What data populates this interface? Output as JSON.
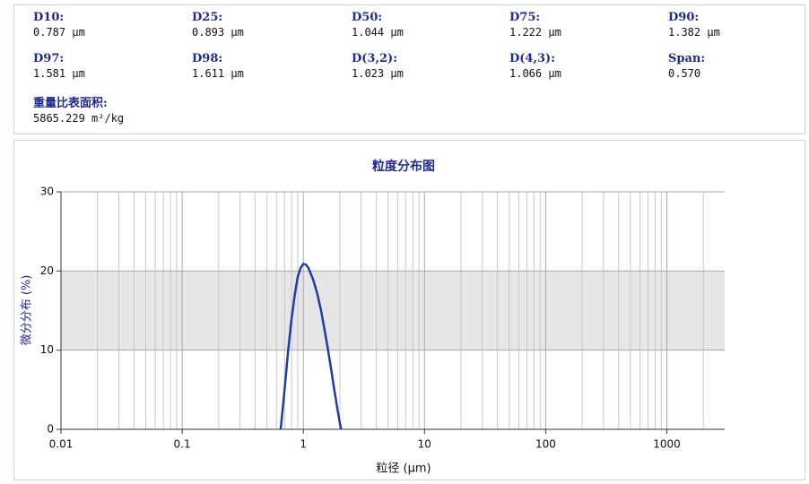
{
  "stats": [
    {
      "label": "D10:",
      "value": "0.787 μm"
    },
    {
      "label": "D25:",
      "value": "0.893 μm"
    },
    {
      "label": "D50:",
      "value": "1.044 μm"
    },
    {
      "label": "D75:",
      "value": "1.222 μm"
    },
    {
      "label": "D90:",
      "value": "1.382 μm"
    },
    {
      "label": "D97:",
      "value": "1.581 μm"
    },
    {
      "label": "D98:",
      "value": "1.611 μm"
    },
    {
      "label": "D(3,2):",
      "value": "1.023 μm"
    },
    {
      "label": "D(4,3):",
      "value": "1.066 μm"
    },
    {
      "label": "Span:",
      "value": "0.570"
    },
    {
      "label": "重量比表面积:",
      "value": "5865.229 m²/kg"
    }
  ],
  "chart_data": {
    "type": "line",
    "title": "粒度分布图",
    "x_label": "粒径 (μm)",
    "y_label": "微分分布 (%)",
    "x_log": true,
    "xlim": [
      0.01,
      3000
    ],
    "xticks": [
      0.01,
      0.1,
      1,
      10,
      100,
      1000
    ],
    "xminorticks": [
      0.02,
      0.03,
      0.04,
      0.05,
      0.06,
      0.07,
      0.08,
      0.09,
      0.2,
      0.3,
      0.4,
      0.5,
      0.6,
      0.7,
      0.8,
      0.9,
      2,
      3,
      4,
      5,
      6,
      7,
      8,
      9,
      20,
      30,
      40,
      50,
      60,
      70,
      80,
      90,
      200,
      300,
      400,
      500,
      600,
      700,
      800,
      900,
      2000
    ],
    "ylim": [
      0,
      30
    ],
    "yticks": [
      0,
      10,
      20,
      30
    ],
    "grid": true,
    "alternate_band_color": "#e6e6e6",
    "series": [
      {
        "name": "微分分布",
        "color": "#1f3d9c",
        "x": [
          0.65,
          0.7,
          0.75,
          0.8,
          0.85,
          0.9,
          0.95,
          1.0,
          1.05,
          1.1,
          1.2,
          1.3,
          1.4,
          1.5,
          1.6,
          1.7,
          1.8,
          1.9,
          2.0,
          2.05
        ],
        "values": [
          0,
          5,
          10,
          14,
          17,
          19.3,
          20.4,
          20.9,
          20.8,
          20.4,
          19,
          17.2,
          15,
          12.5,
          10,
          7.5,
          5,
          2.8,
          0.8,
          0
        ]
      }
    ]
  }
}
